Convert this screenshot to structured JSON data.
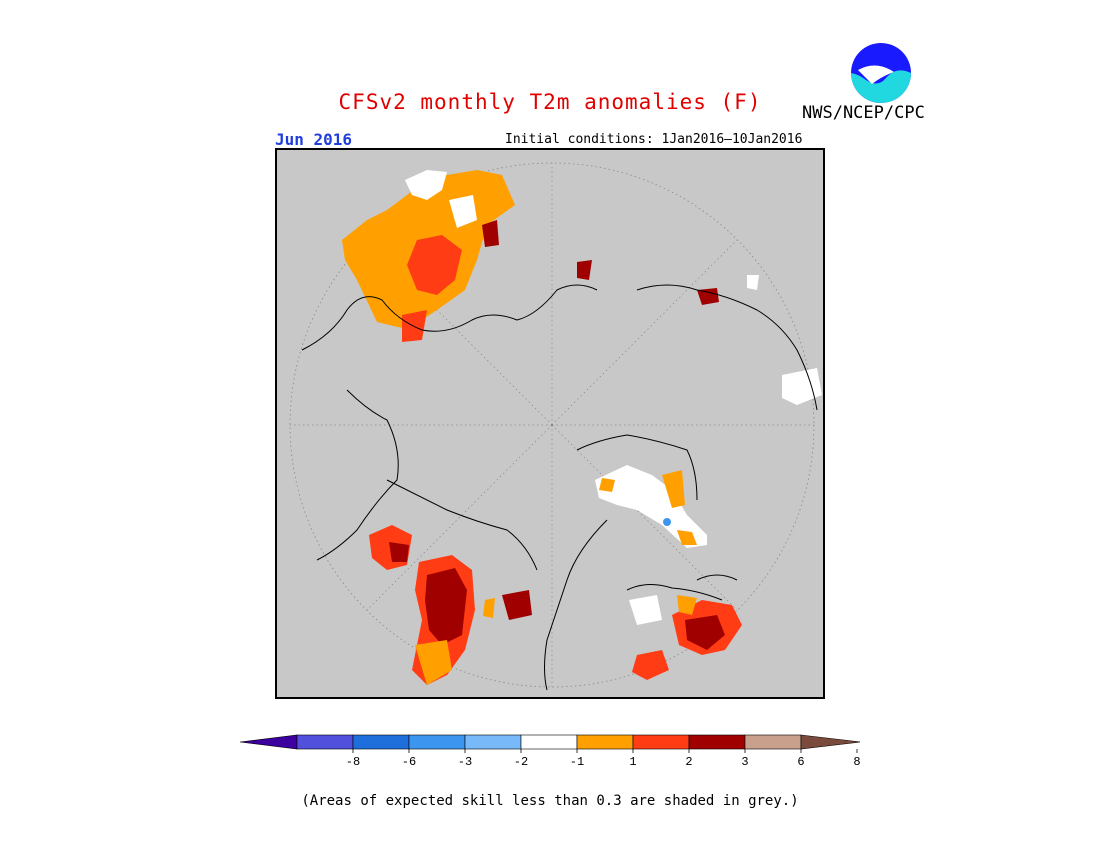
{
  "header": {
    "title": "CFSv2 monthly T2m anomalies (F)",
    "agency": "NWS/NCEP/CPC",
    "logo_text": "NOAA",
    "month": "Jun 2016",
    "initial_conditions": "Initial conditions: 1Jan2016–10Jan2016"
  },
  "map": {
    "projection": "north polar stereographic",
    "skill_mask_color": "#c8c8c8",
    "anomaly_regions": [
      {
        "region": "western Russia / Scandinavia",
        "category": "2",
        "color": "#ffa000"
      },
      {
        "region": "central Russia (Volga)",
        "category": "3",
        "color": "#ff3c14"
      },
      {
        "region": "Ural region",
        "category": "1",
        "color": "#ffffff"
      },
      {
        "region": "western North America",
        "category": "6",
        "color": "#a00000"
      },
      {
        "region": "Hudson Bay region",
        "category": "6",
        "color": "#a00000"
      },
      {
        "region": "Greenland",
        "category": "1",
        "color": "#ffffff"
      },
      {
        "region": "Iceland / British Isles",
        "category": "3",
        "color": "#ff3c14"
      },
      {
        "region": "northeast Asia",
        "category": "1",
        "color": "#ffffff"
      }
    ]
  },
  "colorbar": {
    "ticks": [
      "-8",
      "-6",
      "-3",
      "-2",
      "-1",
      "1",
      "2",
      "3",
      "6",
      "8"
    ],
    "colors": [
      "#3c00a0",
      "#5050dc",
      "#1e6edc",
      "#3c96f0",
      "#78b9fa",
      "#ffffff",
      "#ffa000",
      "#ff3c14",
      "#a00000",
      "#c8a08c",
      "#7a4a3c"
    ]
  },
  "footer": {
    "note": "(Areas of expected skill less than 0.3 are shaded in grey.)"
  }
}
